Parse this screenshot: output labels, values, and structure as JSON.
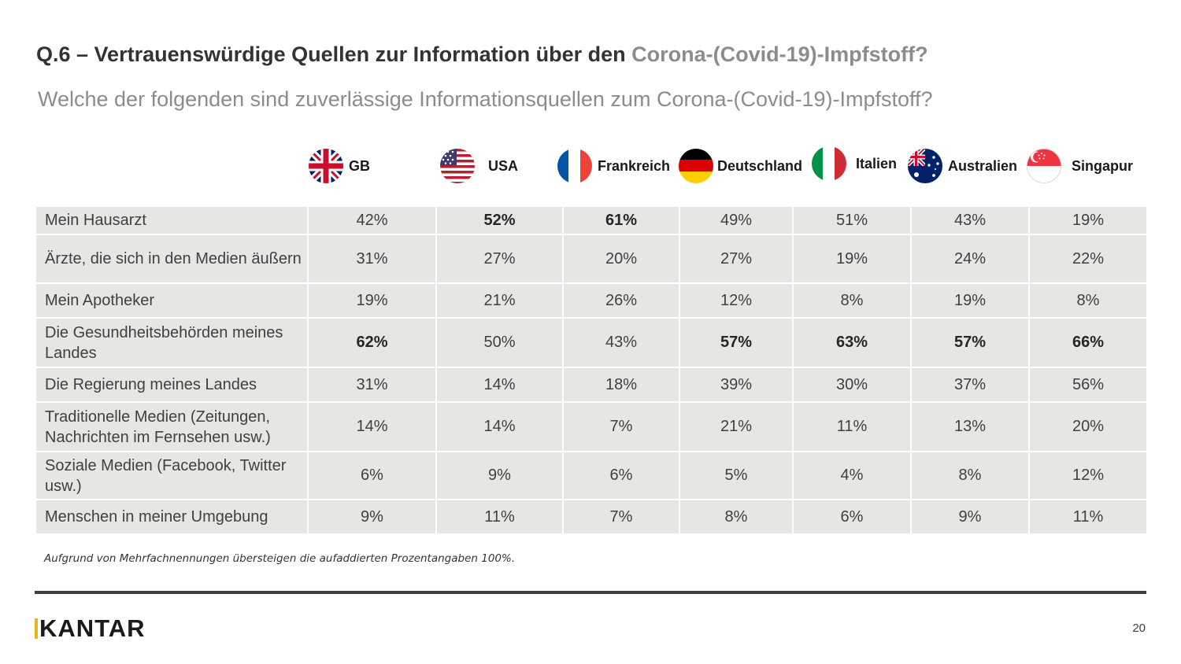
{
  "title": {
    "main": "Q.6 – Vertrauenswürdige Quellen zur Information über den ",
    "highlight": "Corona-(Covid-19)-Impfstoff?"
  },
  "subtitle": "Welche der folgenden sind zuverlässige Informationsquellen zum Corona-(Covid-19)-Impfstoff?",
  "countries": [
    "GB",
    "USA",
    "Frankreich",
    "Deutschland",
    "Italien",
    "Australien",
    "Singapur"
  ],
  "rows": [
    {
      "label": "Mein Hausarzt",
      "values": [
        "42%",
        "52%",
        "61%",
        "49%",
        "51%",
        "43%",
        "19%"
      ]
    },
    {
      "label": "Ärzte, die sich in den Medien äußern",
      "values": [
        "31%",
        "27%",
        "20%",
        "27%",
        "19%",
        "24%",
        "22%"
      ]
    },
    {
      "label": "Mein Apotheker",
      "values": [
        "19%",
        "21%",
        "26%",
        "12%",
        "8%",
        "19%",
        "8%"
      ]
    },
    {
      "label": "Die Gesundheitsbehörden meines Landes",
      "values": [
        "62%",
        "50%",
        "43%",
        "57%",
        "63%",
        "57%",
        "66%"
      ]
    },
    {
      "label": "Die Regierung meines Landes",
      "values": [
        "31%",
        "14%",
        "18%",
        "39%",
        "30%",
        "37%",
        "56%"
      ]
    },
    {
      "label": "Traditionelle Medien (Zeitungen, Nachrichten im Fernsehen usw.)",
      "values": [
        "14%",
        "14%",
        "7%",
        "21%",
        "11%",
        "13%",
        "20%"
      ]
    },
    {
      "label": "Soziale Medien (Facebook, Twitter usw.)",
      "values": [
        "6%",
        "9%",
        "6%",
        "5%",
        "4%",
        "8%",
        "12%"
      ]
    },
    {
      "label": "Menschen in meiner Umgebung",
      "values": [
        "9%",
        "11%",
        "7%",
        "8%",
        "6%",
        "9%",
        "11%"
      ]
    }
  ],
  "footnote": "Aufgrund von Mehrfachnennungen übersteigen die aufaddierten Prozentangaben 100%.",
  "logo": "KANTAR",
  "page_number": "20",
  "icons": [
    "uk-flag-icon",
    "usa-flag-icon",
    "france-flag-icon",
    "germany-flag-icon",
    "italy-flag-icon",
    "australia-flag-icon",
    "singapore-flag-icon"
  ],
  "colors": {
    "cell_background": "#e7e6e3",
    "title_text": "#333333",
    "highlight_text": "#8c8c8c",
    "rule": "#3f3f3f",
    "logo_accent": "#e3b51e"
  }
}
